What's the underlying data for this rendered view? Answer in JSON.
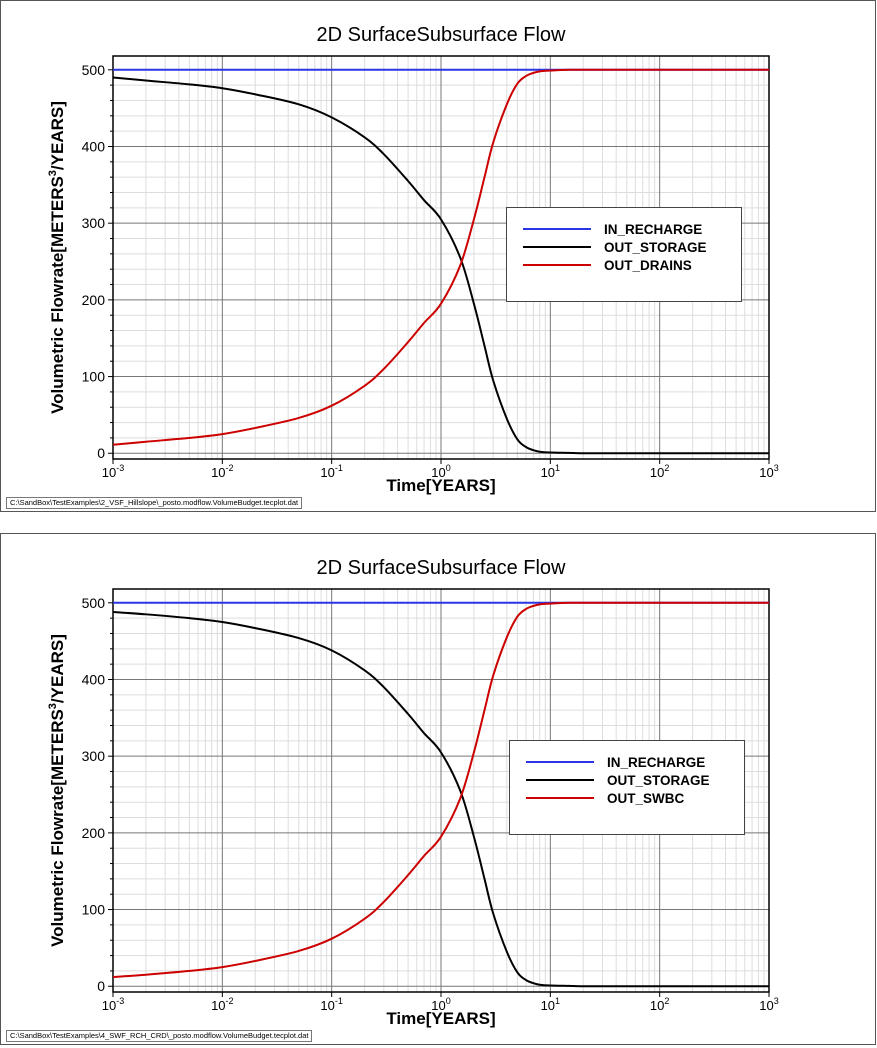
{
  "panels": [
    {
      "source_file": "C:\\SandBox\\TestExamples\\2_VSF_Hillslope\\_posto.modflow.VolumeBudget.tecplot.dat"
    },
    {
      "source_file": "C:\\SandBox\\TestExamples\\4_SWF_RCH_CRD\\_posto.modflow.VolumeBudget.tecplot.dat"
    }
  ],
  "colors": {
    "in_recharge": "#2a36e6",
    "out_storage": "#000000",
    "out_red": "#cc0000",
    "grid_major": "#777777",
    "grid_minor": "#dddddd"
  },
  "chart_data": [
    {
      "type": "line",
      "title": "2D SurfaceSubsurface Flow",
      "xlabel": "Time[YEARS]",
      "ylabel_prefix": "Volumetric Flowrate[METERS",
      "ylabel_sup": "3",
      "ylabel_suffix": "/YEARS]",
      "x_scale": "log",
      "xlim": [
        0.001,
        1000
      ],
      "ylim": [
        0,
        500
      ],
      "y_ticks": [
        0,
        100,
        200,
        300,
        400,
        500
      ],
      "x_ticks": [
        {
          "base": "10",
          "exp": "-3",
          "value": 0.001
        },
        {
          "base": "10",
          "exp": "-2",
          "value": 0.01
        },
        {
          "base": "10",
          "exp": "-1",
          "value": 0.1
        },
        {
          "base": "10",
          "exp": "0",
          "value": 1
        },
        {
          "base": "10",
          "exp": "1",
          "value": 10
        },
        {
          "base": "10",
          "exp": "2",
          "value": 100
        },
        {
          "base": "10",
          "exp": "3",
          "value": 1000
        }
      ],
      "grid": true,
      "legend_position": "right",
      "x": [
        0.001,
        0.002,
        0.005,
        0.01,
        0.02,
        0.05,
        0.1,
        0.2,
        0.3,
        0.5,
        0.7,
        1.0,
        1.5,
        2.0,
        2.5,
        3.0,
        4.0,
        5.0,
        6.0,
        7.0,
        8.0,
        10,
        15,
        20,
        50,
        100,
        1000
      ],
      "series": [
        {
          "name": "IN_RECHARGE",
          "color": "#2a36e6",
          "values": [
            500,
            500,
            500,
            500,
            500,
            500,
            500,
            500,
            500,
            500,
            500,
            500,
            500,
            500,
            500,
            500,
            500,
            500,
            500,
            500,
            500,
            500,
            500,
            500,
            500,
            500,
            500
          ]
        },
        {
          "name": "OUT_STORAGE",
          "color": "#000000",
          "values": [
            490,
            486,
            481,
            476,
            468,
            455,
            438,
            412,
            390,
            355,
            330,
            305,
            255,
            195,
            140,
            95,
            45,
            18,
            8,
            4,
            2,
            1,
            0.5,
            0,
            0,
            0,
            0
          ]
        },
        {
          "name": "OUT_DRAINS",
          "color": "#cc0000",
          "values": [
            11,
            15,
            20,
            25,
            33,
            46,
            62,
            88,
            110,
            145,
            170,
            195,
            245,
            305,
            360,
            405,
            455,
            482,
            492,
            496,
            498,
            499,
            500,
            500,
            500,
            500,
            500
          ]
        }
      ]
    },
    {
      "type": "line",
      "title": "2D SurfaceSubsurface Flow",
      "xlabel": "Time[YEARS]",
      "ylabel_prefix": "Volumetric Flowrate[METERS",
      "ylabel_sup": "3",
      "ylabel_suffix": "/YEARS]",
      "x_scale": "log",
      "xlim": [
        0.001,
        1000
      ],
      "ylim": [
        0,
        500
      ],
      "y_ticks": [
        0,
        100,
        200,
        300,
        400,
        500
      ],
      "x_ticks": [
        {
          "base": "10",
          "exp": "-3",
          "value": 0.001
        },
        {
          "base": "10",
          "exp": "-2",
          "value": 0.01
        },
        {
          "base": "10",
          "exp": "-1",
          "value": 0.1
        },
        {
          "base": "10",
          "exp": "0",
          "value": 1
        },
        {
          "base": "10",
          "exp": "1",
          "value": 10
        },
        {
          "base": "10",
          "exp": "2",
          "value": 100
        },
        {
          "base": "10",
          "exp": "3",
          "value": 1000
        }
      ],
      "grid": true,
      "legend_position": "right",
      "x": [
        0.001,
        0.002,
        0.005,
        0.01,
        0.02,
        0.05,
        0.1,
        0.2,
        0.3,
        0.5,
        0.7,
        1.0,
        1.5,
        2.0,
        2.5,
        3.0,
        4.0,
        5.0,
        6.0,
        7.0,
        8.0,
        10,
        15,
        20,
        50,
        100,
        1000
      ],
      "series": [
        {
          "name": "IN_RECHARGE",
          "color": "#2a36e6",
          "values": [
            500,
            500,
            500,
            500,
            500,
            500,
            500,
            500,
            500,
            500,
            500,
            500,
            500,
            500,
            500,
            500,
            500,
            500,
            500,
            500,
            500,
            500,
            500,
            500,
            500,
            500,
            500
          ]
        },
        {
          "name": "OUT_STORAGE",
          "color": "#000000",
          "values": [
            488,
            485,
            480,
            475,
            467,
            454,
            438,
            412,
            390,
            355,
            330,
            305,
            255,
            195,
            140,
            95,
            45,
            18,
            8,
            4,
            2,
            1,
            0.5,
            0,
            0,
            0,
            0
          ]
        },
        {
          "name": "OUT_SWBC",
          "color": "#cc0000",
          "values": [
            12,
            15,
            20,
            25,
            33,
            46,
            62,
            88,
            110,
            145,
            170,
            195,
            245,
            305,
            360,
            405,
            455,
            482,
            492,
            496,
            498,
            499,
            500,
            500,
            500,
            500,
            500
          ]
        }
      ]
    }
  ]
}
